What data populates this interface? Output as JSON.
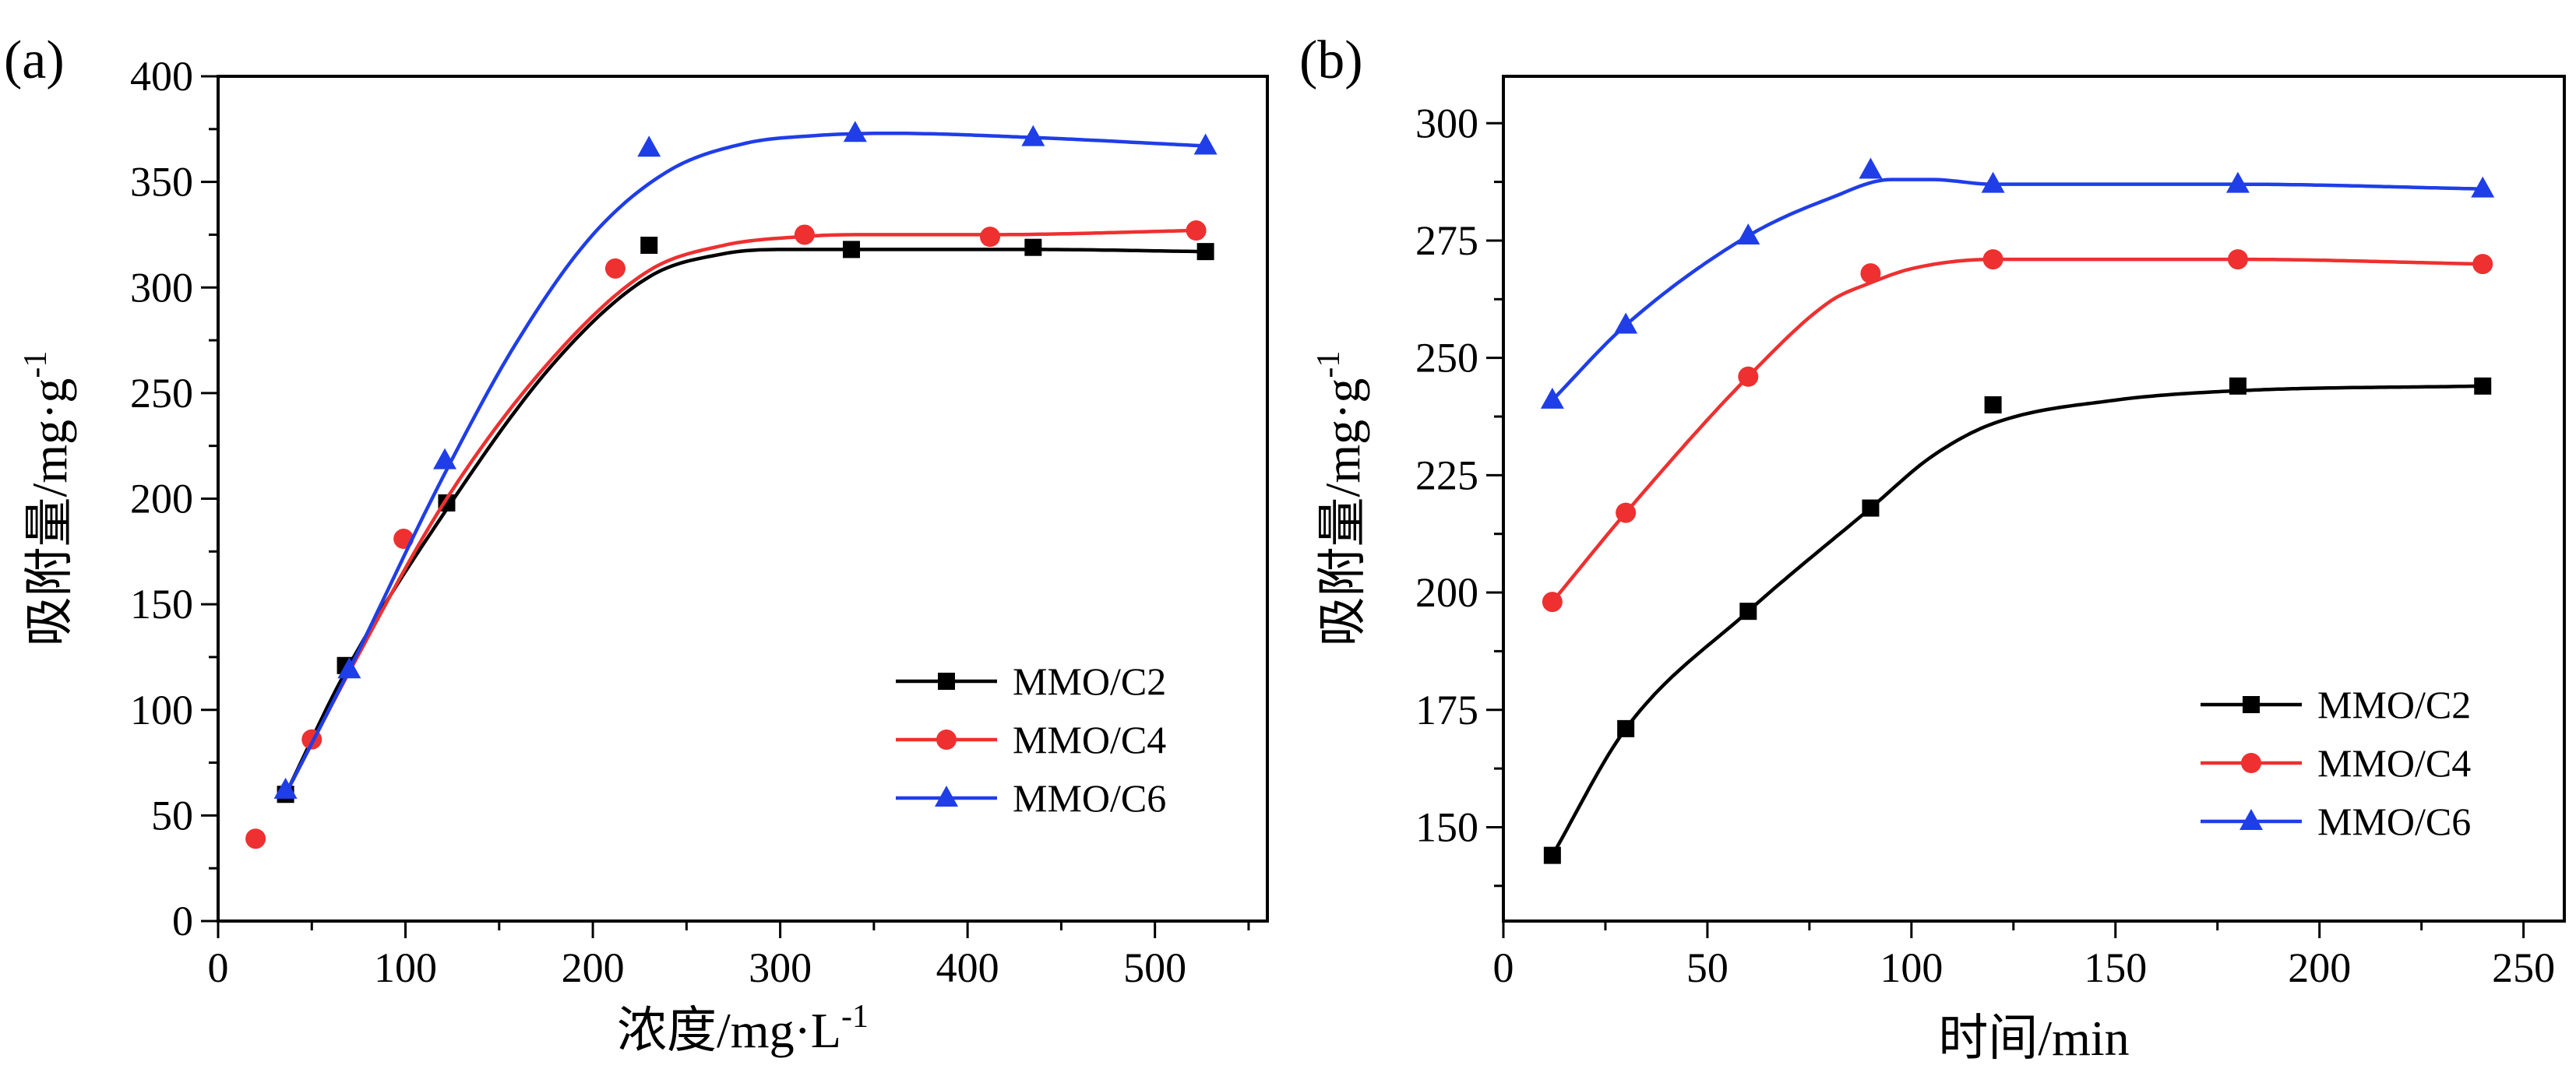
{
  "chart_data": [
    {
      "type": "line",
      "panel_label": "(a)",
      "xlabel": "浓度/mg·L",
      "xlabel_sup": "-1",
      "ylabel": "吸附量/mg·g",
      "ylabel_sup": "-1",
      "xlim": [
        0,
        560
      ],
      "ylim": [
        0,
        400
      ],
      "xticks": [
        0,
        100,
        200,
        300,
        400,
        500
      ],
      "yticks": [
        0,
        50,
        100,
        150,
        200,
        250,
        300,
        350,
        400
      ],
      "legend_position": "lower-right",
      "series": [
        {
          "name": "MMO/C2",
          "color": "#000000",
          "marker": "square",
          "x": [
            36,
            68,
            122,
            230,
            338,
            435,
            527
          ],
          "y": [
            60,
            121,
            198,
            320,
            318,
            319,
            317
          ],
          "fit_x": [
            36,
            68,
            122,
            180,
            230,
            270,
            300,
            338,
            435,
            527
          ],
          "fit_y": [
            60,
            118,
            195,
            265,
            305,
            316,
            318,
            318,
            318,
            317
          ]
        },
        {
          "name": "MMO/C4",
          "color": "#ee3030",
          "marker": "circle",
          "x": [
            20,
            50,
            99,
            212,
            313,
            412,
            522
          ],
          "y": [
            39,
            86,
            181,
            309,
            325,
            324,
            327
          ],
          "fit_x": [
            36,
            70,
            122,
            180,
            230,
            270,
            310,
            340,
            412,
            522
          ],
          "fit_y": [
            60,
            118,
            200,
            268,
            308,
            320,
            324,
            325,
            325,
            327
          ]
        },
        {
          "name": "MMO/C6",
          "color": "#1f3ee8",
          "marker": "triangle",
          "x": [
            36,
            70,
            121,
            230,
            340,
            435,
            527
          ],
          "y": [
            62,
            119,
            218,
            366,
            373,
            371,
            367
          ],
          "fit_x": [
            36,
            70,
            121,
            160,
            200,
            240,
            280,
            320,
            360,
            435,
            527
          ],
          "fit_y": [
            60,
            119,
            212,
            275,
            325,
            355,
            368,
            372,
            373,
            371,
            367
          ]
        }
      ]
    },
    {
      "type": "line",
      "panel_label": "(b)",
      "xlabel": "时间/min",
      "ylabel": "吸附量/mg·g",
      "ylabel_sup": "-1",
      "xlim": [
        0,
        260
      ],
      "ylim": [
        130,
        310
      ],
      "xticks": [
        0,
        50,
        100,
        150,
        200,
        250
      ],
      "yticks": [
        150,
        175,
        200,
        225,
        250,
        275,
        300
      ],
      "legend_position": "lower-right",
      "series": [
        {
          "name": "MMO/C2",
          "color": "#000000",
          "marker": "square",
          "x": [
            12,
            30,
            60,
            90,
            120,
            180,
            240
          ],
          "y": [
            144,
            171,
            196,
            218,
            240,
            244,
            244
          ],
          "fit_x": [
            12,
            30,
            60,
            90,
            105,
            120,
            150,
            180,
            240
          ],
          "fit_y": [
            144,
            171,
            196,
            218,
            229,
            236,
            241,
            243,
            244
          ]
        },
        {
          "name": "MMO/C4",
          "color": "#ee3030",
          "marker": "circle",
          "x": [
            12,
            30,
            60,
            90,
            120,
            180,
            240
          ],
          "y": [
            198,
            217,
            246,
            268,
            271,
            271,
            270
          ],
          "fit_x": [
            12,
            30,
            60,
            80,
            90,
            100,
            120,
            180,
            240
          ],
          "fit_y": [
            198,
            217,
            246,
            262,
            266,
            269,
            271,
            271,
            270
          ]
        },
        {
          "name": "MMO/C6",
          "color": "#1f3ee8",
          "marker": "triangle",
          "x": [
            12,
            30,
            60,
            90,
            120,
            180,
            240
          ],
          "y": [
            241,
            257,
            276,
            290,
            287,
            287,
            286
          ],
          "fit_x": [
            12,
            30,
            60,
            80,
            95,
            105,
            120,
            180,
            240
          ],
          "fit_y": [
            241,
            257,
            276,
            284,
            288,
            288,
            287,
            287,
            286
          ]
        }
      ]
    }
  ]
}
